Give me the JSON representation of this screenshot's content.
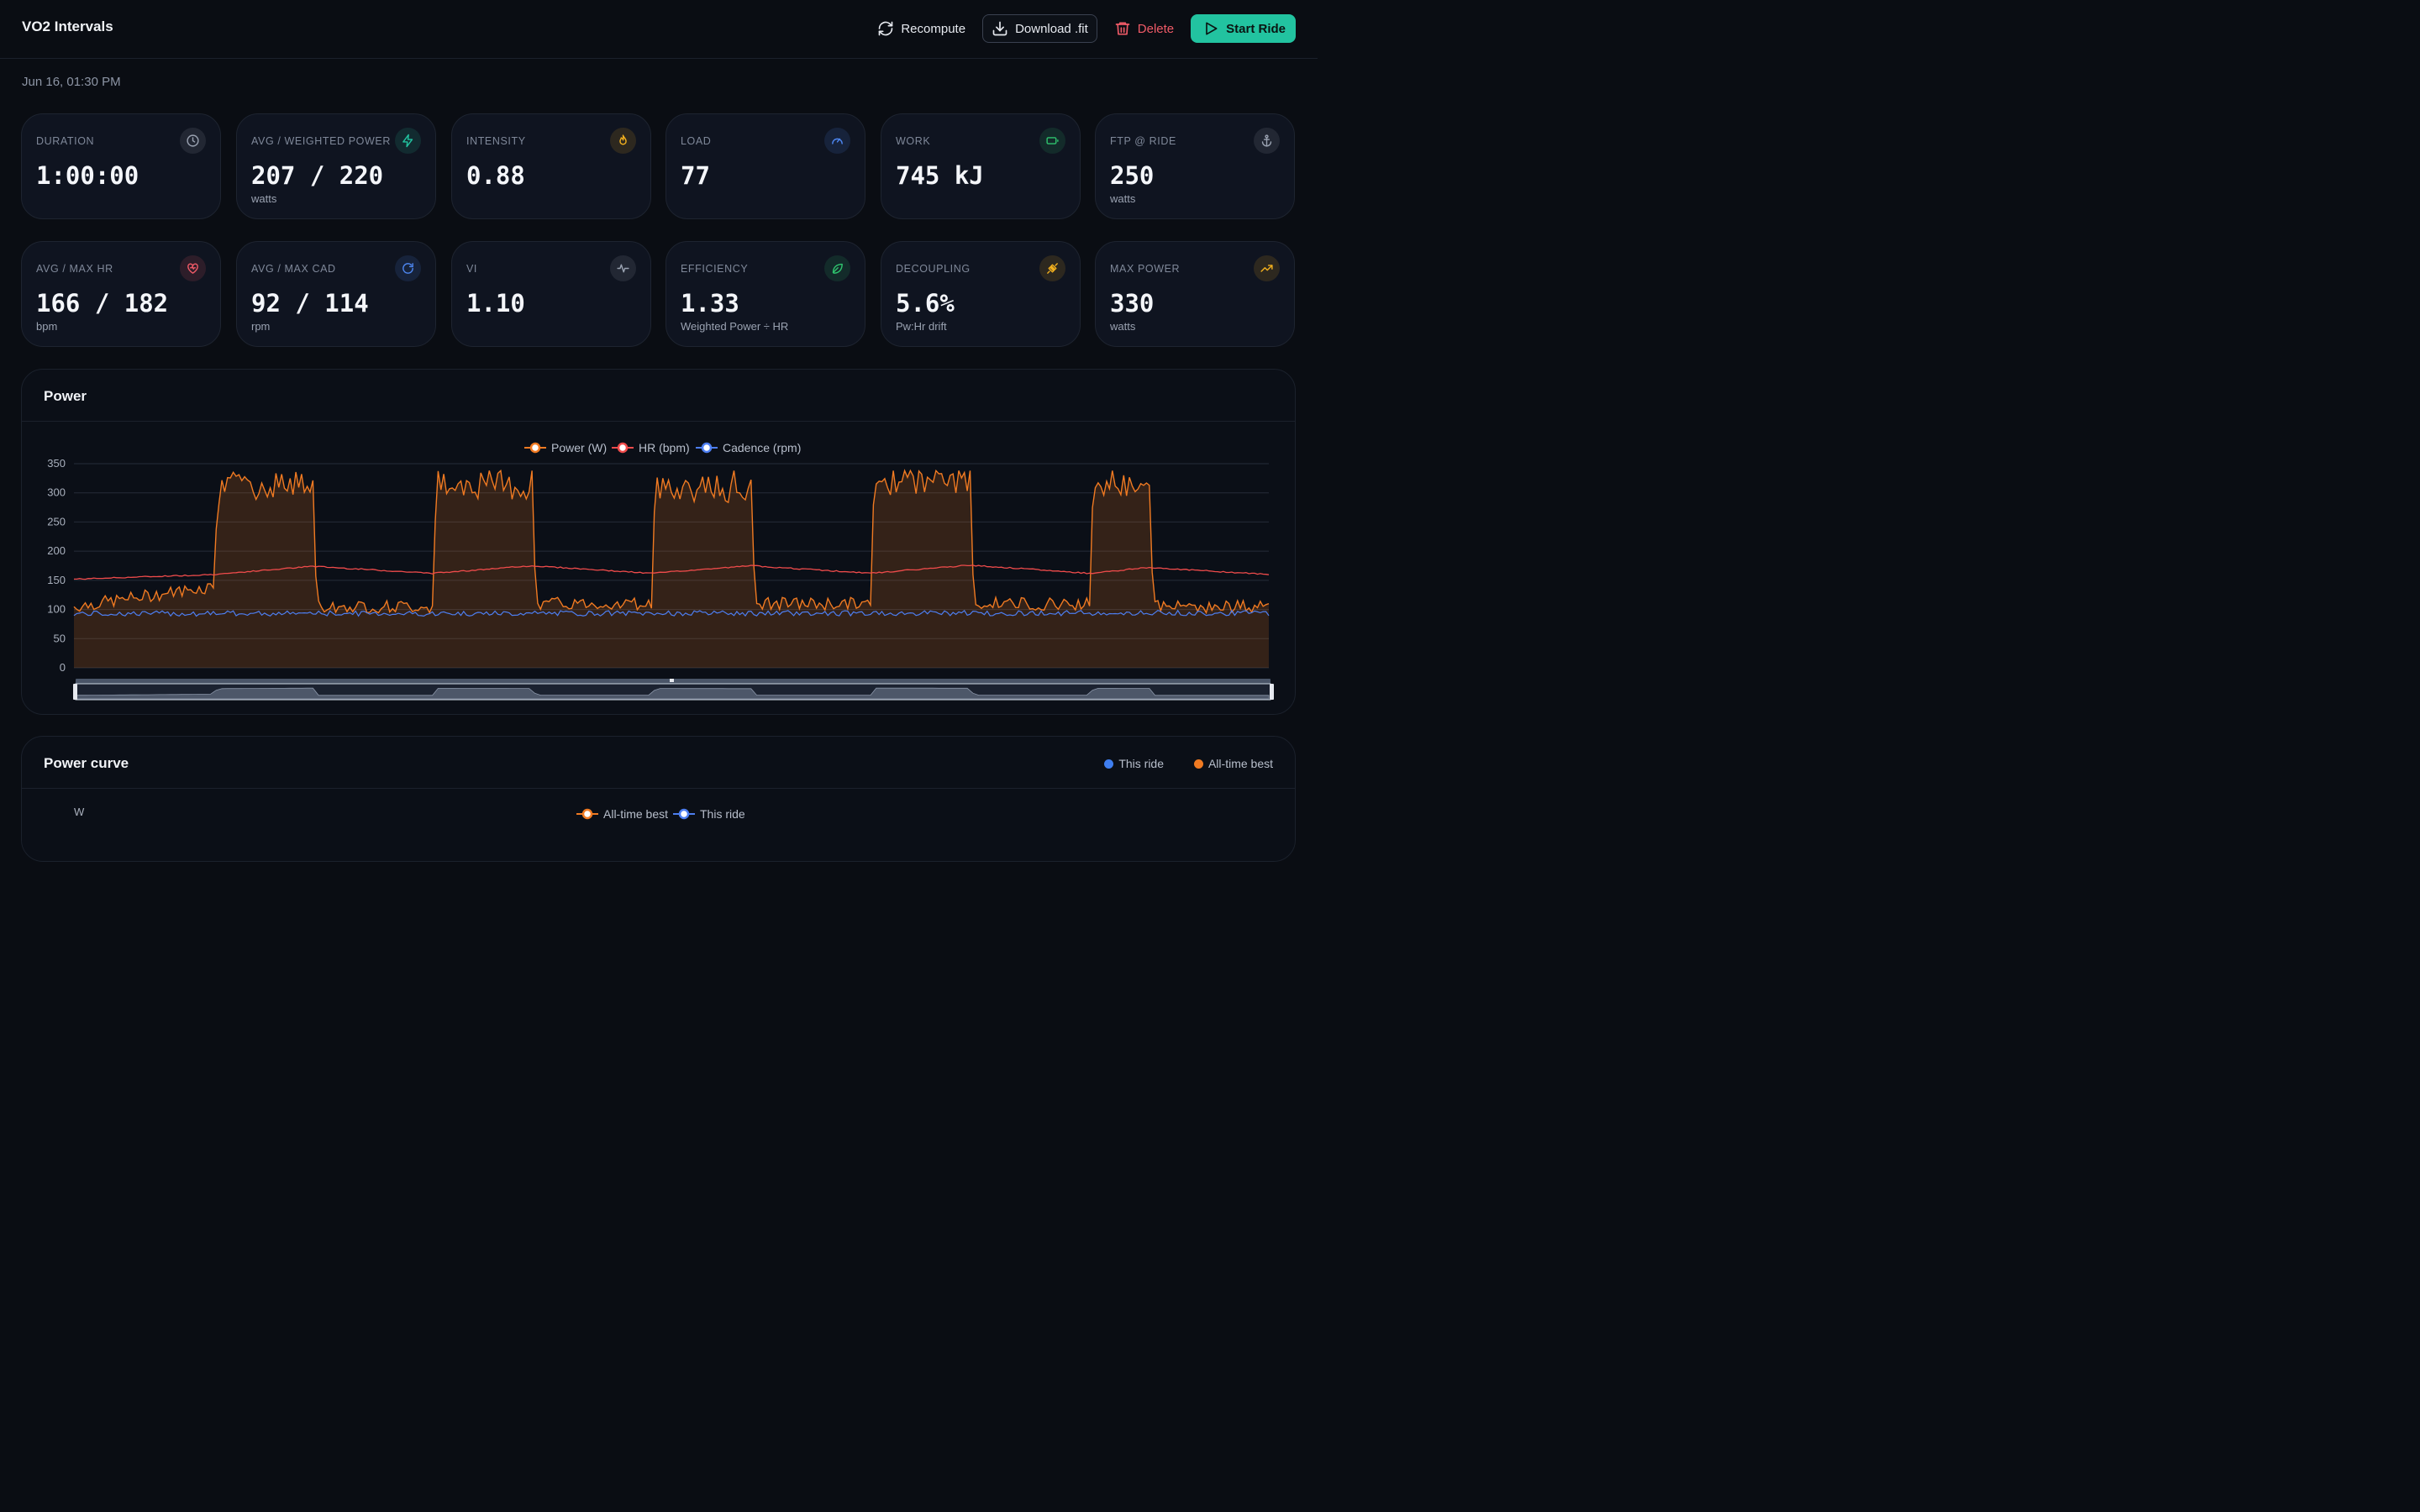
{
  "header": {
    "title": "VO2 Intervals",
    "actions": {
      "recompute": "Recompute",
      "download": "Download .fit",
      "delete": "Delete",
      "start": "Start Ride"
    }
  },
  "date": "Jun 16, 01:30 PM",
  "stats": [
    {
      "label": "DURATION",
      "value": "1:00:00",
      "unit": "",
      "icon": "clock-icon",
      "color": "#9aa2b1"
    },
    {
      "label": "AVG / WEIGHTED POWER",
      "value": "207 / 220",
      "unit": "watts",
      "icon": "lightning-icon",
      "color": "#22c3a0"
    },
    {
      "label": "INTENSITY",
      "value": "0.88",
      "unit": "",
      "icon": "flame-icon",
      "color": "#f2b01e"
    },
    {
      "label": "LOAD",
      "value": "77",
      "unit": "",
      "icon": "gauge-icon",
      "color": "#4d86f0"
    },
    {
      "label": "WORK",
      "value": "745 kJ",
      "unit": "",
      "icon": "battery-icon",
      "color": "#2fc46e"
    },
    {
      "label": "FTP @ RIDE",
      "value": "250",
      "unit": "watts",
      "icon": "anchor-icon",
      "color": "#9aa2b1"
    },
    {
      "label": "AVG / MAX HR",
      "value": "166 / 182",
      "unit": "bpm",
      "icon": "heart-icon",
      "color": "#ef5a67"
    },
    {
      "label": "AVG / MAX CAD",
      "value": "92 / 114",
      "unit": "rpm",
      "icon": "refresh-icon",
      "color": "#4d86f0"
    },
    {
      "label": "VI",
      "value": "1.10",
      "unit": "",
      "icon": "pulse-icon",
      "color": "#9aa2b1"
    },
    {
      "label": "EFFICIENCY",
      "value": "1.33",
      "unit": "Weighted Power ÷ HR",
      "icon": "leaf-icon",
      "color": "#2fc46e"
    },
    {
      "label": "DECOUPLING",
      "value": "5.6%",
      "unit": "Pw:Hr drift",
      "icon": "plug-icon",
      "color": "#f2b01e"
    },
    {
      "label": "MAX POWER",
      "value": "330",
      "unit": "watts",
      "icon": "trend-up-icon",
      "color": "#f2b01e"
    }
  ],
  "power_panel": {
    "title": "Power"
  },
  "curve_panel": {
    "title": "Power curve",
    "legend_this": "This ride",
    "legend_best": "All-time best",
    "chart_legend_best": "All-time best",
    "chart_legend_this": "This ride",
    "yunit": "W"
  },
  "colors": {
    "power": "#f07a22",
    "hr": "#ef4b4b",
    "cadence": "#4d7ef0",
    "accent": "#22c3a0"
  },
  "chart_data": {
    "type": "line",
    "legend": [
      "Power (W)",
      "HR (bpm)",
      "Cadence (rpm)"
    ],
    "legend_position": "top-center",
    "ylim": [
      0,
      350
    ],
    "yticks": [
      0,
      50,
      100,
      150,
      200,
      250,
      300,
      350
    ],
    "grid": true,
    "x_range_minutes": [
      0,
      60
    ],
    "series": [
      {
        "name": "Power (W)",
        "type": "area",
        "x": [
          0,
          7,
          7.2,
          12,
          12.2,
          18,
          18.2,
          23,
          23.2,
          29,
          29.2,
          34,
          34.2,
          40,
          40.2,
          45,
          45.2,
          51,
          51.2,
          54,
          54.2,
          60
        ],
        "values": [
          105,
          140,
          305,
          320,
          105,
          105,
          315,
          310,
          110,
          110,
          310,
          305,
          110,
          110,
          320,
          318,
          110,
          110,
          315,
          312,
          105,
          105
        ]
      },
      {
        "name": "HR (bpm)",
        "x": [
          0,
          7,
          12,
          18,
          23,
          29,
          34,
          40,
          45,
          51,
          54,
          60
        ],
        "values": [
          152,
          160,
          174,
          162,
          175,
          162,
          175,
          162,
          176,
          162,
          172,
          160
        ]
      },
      {
        "name": "Cadence (rpm)",
        "x": [
          0,
          60
        ],
        "values": [
          93,
          94
        ]
      }
    ],
    "interval_efforts": [
      {
        "start_min": 7.2,
        "end_min": 12,
        "peak_w": 330
      },
      {
        "start_min": 18.2,
        "end_min": 23,
        "peak_w": 330
      },
      {
        "start_min": 29.2,
        "end_min": 34,
        "peak_w": 330
      },
      {
        "start_min": 40.2,
        "end_min": 45,
        "peak_w": 330
      },
      {
        "start_min": 51.2,
        "end_min": 54,
        "peak_w": 328
      }
    ]
  }
}
